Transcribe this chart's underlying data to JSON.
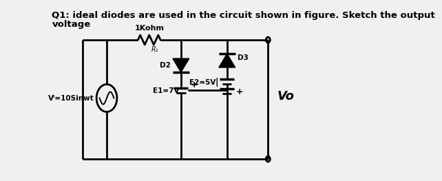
{
  "bg_color": "#f0f0f0",
  "title_line1": "Q1: ideal diodes are used in the circuit shown in figure. Sketch the output",
  "title_line2": "voltage",
  "label_1kohm": "1Kohm",
  "label_R1": "R₁",
  "label_D3": "D3",
  "label_D2": "D2",
  "label_Vi": "Vᴵ=10Sinwt",
  "label_Vo": "Vo",
  "label_E1": "E1=7V",
  "label_E2": "E2=5V",
  "label_plus1": "+",
  "label_plus2": "+",
  "line_color": "#000000",
  "line_width": 2.0,
  "font_size_title": 9.5,
  "font_size_label": 7.5
}
